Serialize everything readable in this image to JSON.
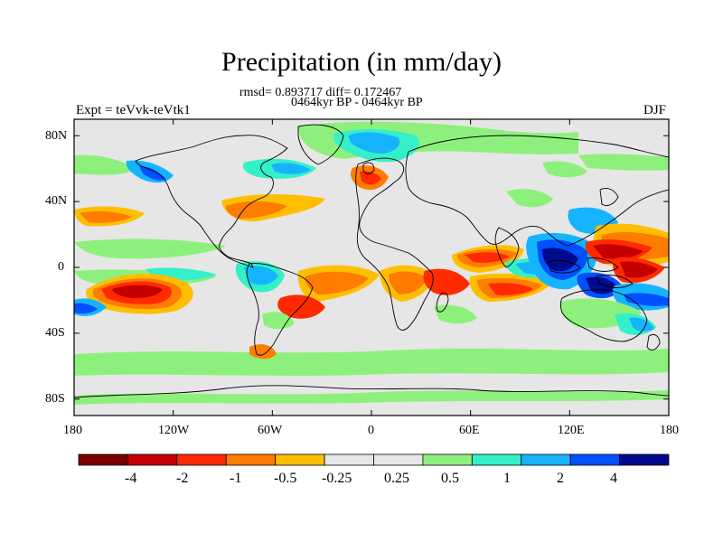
{
  "plot": {
    "title": "Precipitation (in mm/day)",
    "stats": "rmsd= 0.893717 diff= 0.172467",
    "period": "0464kyr BP - 0464kyr BP",
    "experiment": "Expt = teVvk-teVtk1",
    "season": "DJF",
    "background_color": "#e6e6e6",
    "lat_labels": [
      "80N",
      "40N",
      "0",
      "40S",
      "80S"
    ],
    "lon_labels": [
      "180",
      "120W",
      "60W",
      "0",
      "60E",
      "120E",
      "180"
    ]
  },
  "colorbar": {
    "colors": [
      "#7a0000",
      "#c40000",
      "#ff2a00",
      "#ff7c00",
      "#ffbe00",
      "#e6e6e6",
      "#e6e6e6",
      "#8ef07c",
      "#34f0c8",
      "#16b4ff",
      "#0050ff",
      "#000a8c"
    ],
    "labels": [
      "-4",
      "-2",
      "-1",
      "-0.5",
      "-0.25",
      "0.25",
      "0.5",
      "1",
      "2",
      "4"
    ]
  }
}
